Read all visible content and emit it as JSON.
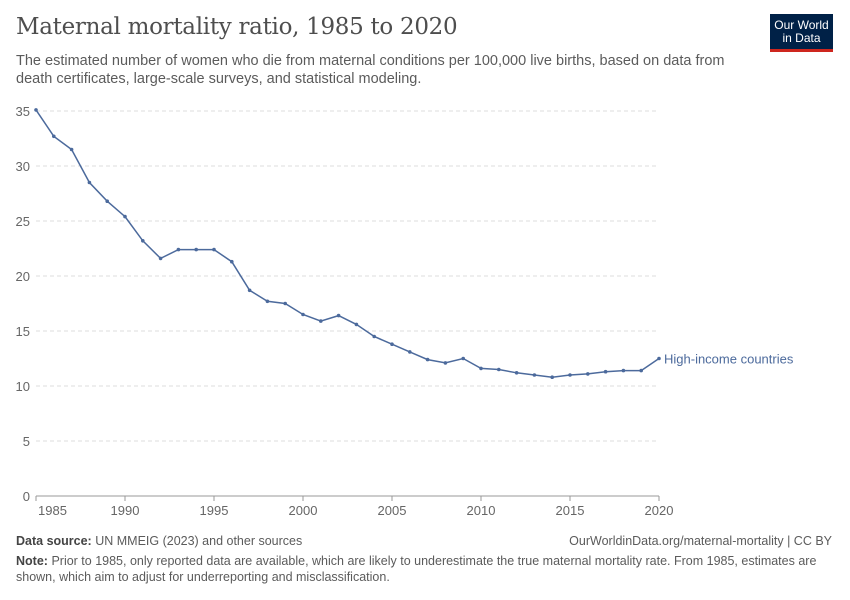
{
  "title": "Maternal mortality ratio, 1985 to 2020",
  "subtitle": "The estimated number of women who die from maternal conditions per 100,000 live births, based on data from death certificates, large-scale surveys, and statistical modeling.",
  "logo": {
    "line1": "Our World",
    "line2": "in Data",
    "bg": "#002147",
    "accent": "#ce261e"
  },
  "footer": {
    "source_label": "Data source:",
    "source": "UN MMEIG (2023) and other sources",
    "url": "OurWorldinData.org/maternal-mortality | CC BY",
    "note_label": "Note:",
    "note": "Prior to 1985, only reported data are available, which are likely to underestimate the true maternal mortality rate. From 1985, estimates are shown, which aim to adjust for underreporting and misclassification."
  },
  "chart_data": {
    "type": "line",
    "xlim": [
      1985,
      2020
    ],
    "ylim": [
      0,
      35
    ],
    "x_ticks": [
      1985,
      1990,
      1995,
      2000,
      2005,
      2010,
      2015,
      2020
    ],
    "y_ticks": [
      0,
      5,
      10,
      15,
      20,
      25,
      30,
      35
    ],
    "grid": "horizontal dashed",
    "series": [
      {
        "name": "High-income countries",
        "color": "#4c6a9c",
        "x": [
          1985,
          1986,
          1987,
          1988,
          1989,
          1990,
          1991,
          1992,
          1993,
          1994,
          1995,
          1996,
          1997,
          1998,
          1999,
          2000,
          2001,
          2002,
          2003,
          2004,
          2005,
          2006,
          2007,
          2008,
          2009,
          2010,
          2011,
          2012,
          2013,
          2014,
          2015,
          2016,
          2017,
          2018,
          2019,
          2020
        ],
        "values": [
          35.1,
          32.7,
          31.5,
          28.5,
          26.8,
          25.4,
          23.2,
          21.6,
          22.4,
          22.4,
          22.4,
          21.3,
          18.7,
          17.7,
          17.5,
          16.5,
          15.9,
          16.4,
          15.6,
          14.5,
          13.8,
          13.1,
          12.4,
          12.1,
          12.5,
          11.6,
          11.5,
          11.2,
          11.0,
          10.8,
          11.0,
          11.1,
          11.3,
          11.4,
          11.4,
          12.5
        ]
      }
    ]
  }
}
